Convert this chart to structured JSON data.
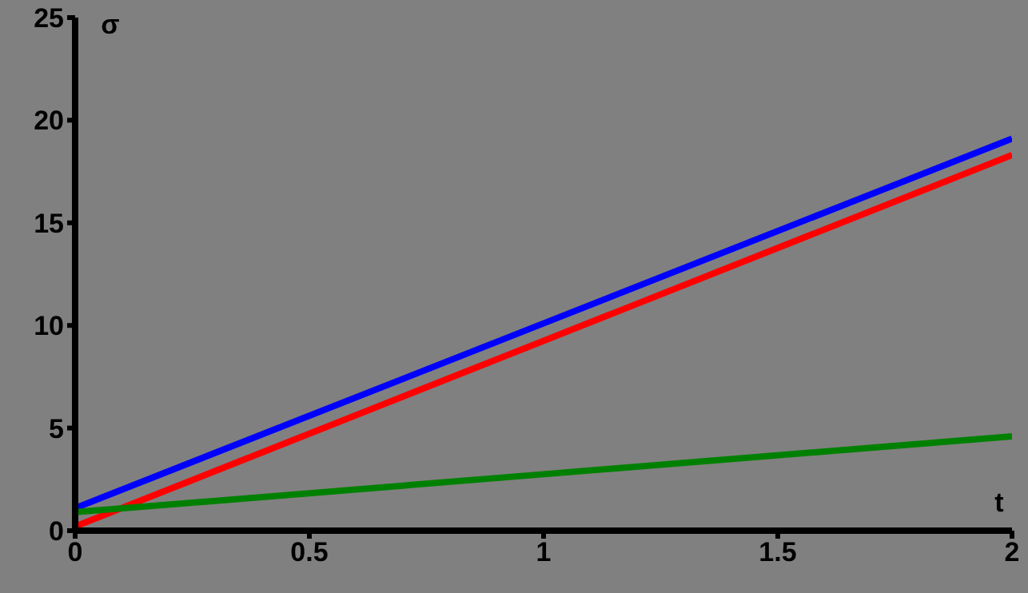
{
  "chart_data": {
    "type": "line",
    "xlabel": "t",
    "ylabel": "σ",
    "x": [
      0,
      1,
      2
    ],
    "series": [
      {
        "color": "#0000ff",
        "values": [
          1.1,
          10.1,
          19.1
        ]
      },
      {
        "color": "#ff0000",
        "values": [
          0.2,
          9.25,
          18.3
        ]
      },
      {
        "color": "#008000",
        "values": [
          0.9,
          2.75,
          4.6
        ]
      }
    ],
    "xlim": [
      0,
      2
    ],
    "xticks": [
      0,
      0.5,
      1,
      1.5,
      2
    ],
    "ylim": [
      0,
      25
    ],
    "yticks": [
      0,
      5,
      10,
      15,
      20,
      25
    ],
    "grid": false,
    "legend": false,
    "marker": "none",
    "line_style": "solid"
  }
}
